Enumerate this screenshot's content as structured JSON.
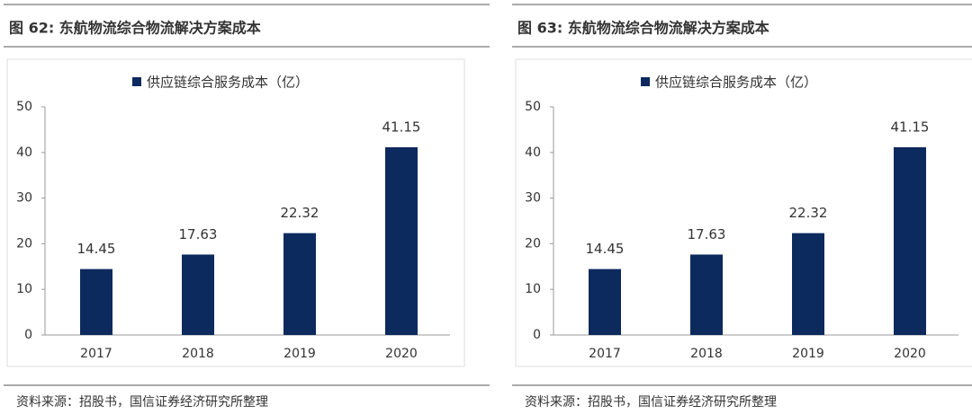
{
  "chart_data": [
    {
      "type": "bar",
      "title": "图 62:  东航物流综合物流解决方案成本",
      "categories": [
        "2017",
        "2018",
        "2019",
        "2020"
      ],
      "series": [
        {
          "name": "供应链综合服务成本（亿）",
          "color": "#0d2a5e",
          "values": [
            14.45,
            17.63,
            22.32,
            41.15
          ]
        }
      ],
      "ylim": [
        0,
        50
      ],
      "yticks": [
        0,
        10,
        20,
        30,
        40,
        50
      ],
      "source": "资料来源：招股书，国信证券经济研究所整理"
    },
    {
      "type": "bar",
      "title": "图 63:  东航物流综合物流解决方案成本",
      "categories": [
        "2017",
        "2018",
        "2019",
        "2020"
      ],
      "series": [
        {
          "name": "供应链综合服务成本（亿）",
          "color": "#0d2a5e",
          "values": [
            14.45,
            17.63,
            22.32,
            41.15
          ]
        }
      ],
      "ylim": [
        0,
        50
      ],
      "yticks": [
        0,
        10,
        20,
        30,
        40,
        50
      ],
      "source": "资料来源：招股书，国信证券经济研究所整理"
    }
  ]
}
